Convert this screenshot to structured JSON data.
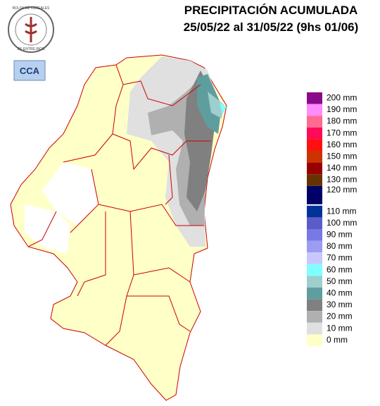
{
  "header": {
    "title": "PRECIPITACIÓN ACUMULADA",
    "subtitle": "25/05/22 al 31/05/22 (9hs 01/06)"
  },
  "logos": {
    "seal_top": "BOLSA DE CEREALES",
    "seal_bottom": "DE ENTRE RIOS",
    "badge": "CCA"
  },
  "legend": {
    "items": [
      {
        "label": "200 mm",
        "color": "#8b0a8b"
      },
      {
        "label": "190 mm",
        "color": "#ff8cff"
      },
      {
        "label": "180 mm",
        "color": "#ff6a90"
      },
      {
        "label": "170 mm",
        "color": "#ff0a5a"
      },
      {
        "label": "160 mm",
        "color": "#ff1010"
      },
      {
        "label": "150 mm",
        "color": "#cc3300"
      },
      {
        "label": "140 mm",
        "color": "#990000"
      },
      {
        "label": "130 mm",
        "color": "#663300"
      },
      {
        "label": "120 mm",
        "color": "#000066"
      },
      {
        "label": "110 mm",
        "color": "#003399"
      },
      {
        "label": "100 mm",
        "color": "#5c5cc8"
      },
      {
        "label": "90 mm",
        "color": "#7878e6"
      },
      {
        "label": "80 mm",
        "color": "#9c9cf0"
      },
      {
        "label": "70 mm",
        "color": "#c8c8ff"
      },
      {
        "label": "60 mm",
        "color": "#80ffff"
      },
      {
        "label": "50 mm",
        "color": "#9ecece"
      },
      {
        "label": "40 mm",
        "color": "#5f9e9e"
      },
      {
        "label": "30 mm",
        "color": "#808080"
      },
      {
        "label": "20 mm",
        "color": "#b0b0b0"
      },
      {
        "label": "10 mm",
        "color": "#e0e0e0"
      },
      {
        "label": "0 mm",
        "color": "#ffffc8"
      }
    ]
  }
}
